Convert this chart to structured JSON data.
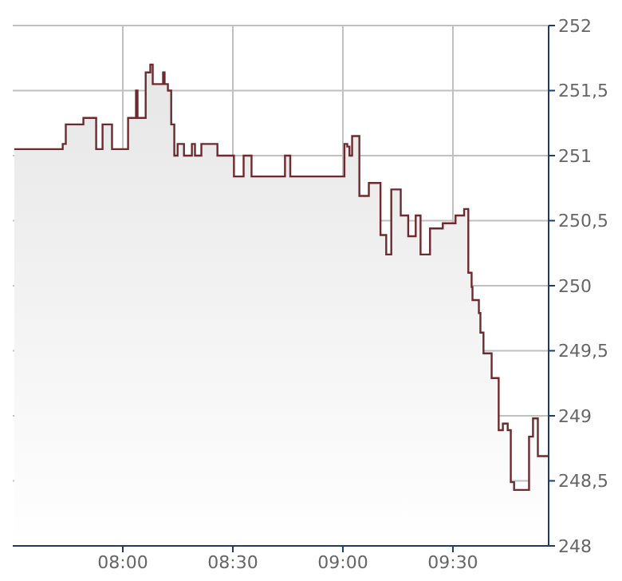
{
  "chart_data": {
    "type": "area",
    "x": [
      7.507,
      7.727,
      7.727,
      7.741,
      7.741,
      7.821,
      7.821,
      7.879,
      7.879,
      7.908,
      7.908,
      7.951,
      7.951,
      8.024,
      8.024,
      8.06,
      8.06,
      8.067,
      8.067,
      8.104,
      8.104,
      8.125,
      8.125,
      8.136,
      8.136,
      8.183,
      8.183,
      8.19,
      8.19,
      8.205,
      8.205,
      8.22,
      8.22,
      8.234,
      8.234,
      8.249,
      8.249,
      8.278,
      8.278,
      8.314,
      8.314,
      8.328,
      8.328,
      8.357,
      8.357,
      8.43,
      8.43,
      8.505,
      8.505,
      8.549,
      8.549,
      8.585,
      8.585,
      8.737,
      8.737,
      8.761,
      8.761,
      9.007,
      9.007,
      9.02,
      9.02,
      9.03,
      9.03,
      9.042,
      9.042,
      9.075,
      9.075,
      9.118,
      9.118,
      9.171,
      9.171,
      9.197,
      9.197,
      9.22,
      9.22,
      9.263,
      9.263,
      9.297,
      9.297,
      9.331,
      9.331,
      9.353,
      9.353,
      9.396,
      9.396,
      9.454,
      9.454,
      9.512,
      9.512,
      9.551,
      9.551,
      9.57,
      9.57,
      9.585,
      9.585,
      9.589,
      9.589,
      9.618,
      9.618,
      9.625,
      9.625,
      9.639,
      9.639,
      9.676,
      9.676,
      9.708,
      9.708,
      9.727,
      9.727,
      9.749,
      9.749,
      9.763,
      9.763,
      9.778,
      9.778,
      9.846,
      9.846,
      9.864,
      9.864,
      9.886,
      9.886,
      9.935
    ],
    "series": [
      {
        "color": "#6e2a2e",
        "values": [
          251.05,
          251.05,
          251.09,
          251.09,
          251.24,
          251.24,
          251.29,
          251.29,
          251.05,
          251.05,
          251.24,
          251.24,
          251.05,
          251.05,
          251.29,
          251.29,
          251.5,
          251.5,
          251.29,
          251.29,
          251.64,
          251.64,
          251.7,
          251.7,
          251.55,
          251.55,
          251.64,
          251.64,
          251.55,
          251.55,
          251.5,
          251.5,
          251.24,
          251.24,
          251.0,
          251.0,
          251.09,
          251.09,
          251.0,
          251.0,
          251.09,
          251.09,
          251.0,
          251.0,
          251.09,
          251.09,
          251.0,
          251.0,
          250.84,
          250.84,
          251.0,
          251.0,
          250.84,
          250.84,
          251.0,
          251.0,
          250.84,
          250.84,
          251.09,
          251.09,
          251.07,
          251.07,
          251.0,
          251.0,
          251.15,
          251.15,
          250.69,
          250.69,
          250.79,
          250.79,
          250.39,
          250.39,
          250.24,
          250.24,
          250.74,
          250.74,
          250.54,
          250.54,
          250.38,
          250.38,
          250.54,
          250.54,
          250.24,
          250.24,
          250.44,
          250.44,
          250.48,
          250.48,
          250.54,
          250.54,
          250.59,
          250.59,
          250.1,
          250.1,
          249.99,
          249.99,
          249.89,
          249.89,
          249.79,
          249.79,
          249.64,
          249.64,
          249.48,
          249.48,
          249.29,
          249.29,
          248.89,
          248.89,
          248.94,
          248.94,
          248.89,
          248.89,
          248.49,
          248.49,
          248.43,
          248.43,
          248.84,
          248.84,
          248.98,
          248.98,
          248.69,
          248.69
        ]
      }
    ],
    "xlim": [
      7.5,
      9.935
    ],
    "xticks": [
      {
        "value": 8,
        "label": "08:00"
      },
      {
        "value": 8.5,
        "label": "08:30"
      },
      {
        "value": 9,
        "label": "09:00"
      },
      {
        "value": 9.5,
        "label": "09:30"
      }
    ],
    "ylim": [
      248,
      252
    ],
    "yticks": [
      248,
      {
        "value": 248.5,
        "label": "248,5"
      },
      249,
      {
        "value": 249.5,
        "label": "249,5"
      },
      250,
      {
        "value": 250.5,
        "label": "250,5"
      },
      251,
      {
        "value": 251.5,
        "label": "251,5"
      },
      252
    ],
    "grid": true
  }
}
